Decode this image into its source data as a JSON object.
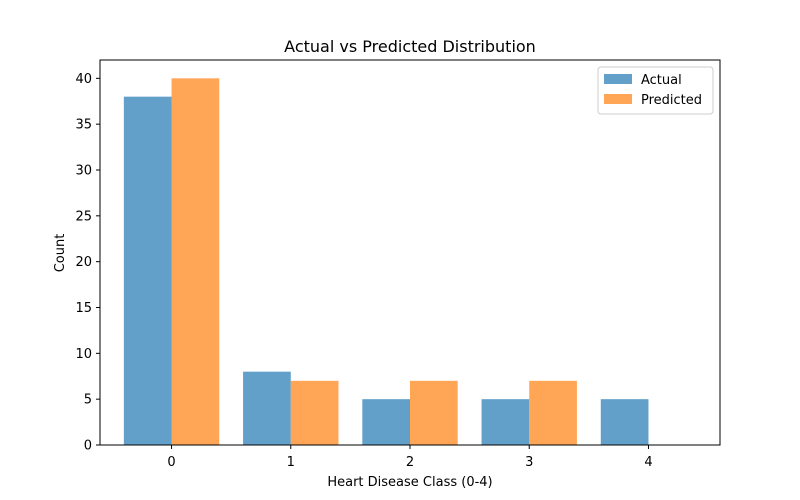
{
  "chart_data": {
    "type": "bar",
    "title": "Actual vs Predicted Distribution",
    "xlabel": "Heart Disease Class (0-4)",
    "ylabel": "Count",
    "categories": [
      "0",
      "1",
      "2",
      "3",
      "4"
    ],
    "series": [
      {
        "name": "Actual",
        "values": [
          38,
          8,
          5,
          5,
          5
        ],
        "color": "#1f77b4",
        "alpha": 0.7
      },
      {
        "name": "Predicted",
        "values": [
          40,
          7,
          7,
          7,
          0
        ],
        "color": "#ff7f0e",
        "alpha": 0.7
      }
    ],
    "ylim": [
      0,
      42
    ],
    "yticks": [
      0,
      5,
      10,
      15,
      20,
      25,
      30,
      35,
      40
    ],
    "grid": false,
    "legend_position": "top-right"
  }
}
